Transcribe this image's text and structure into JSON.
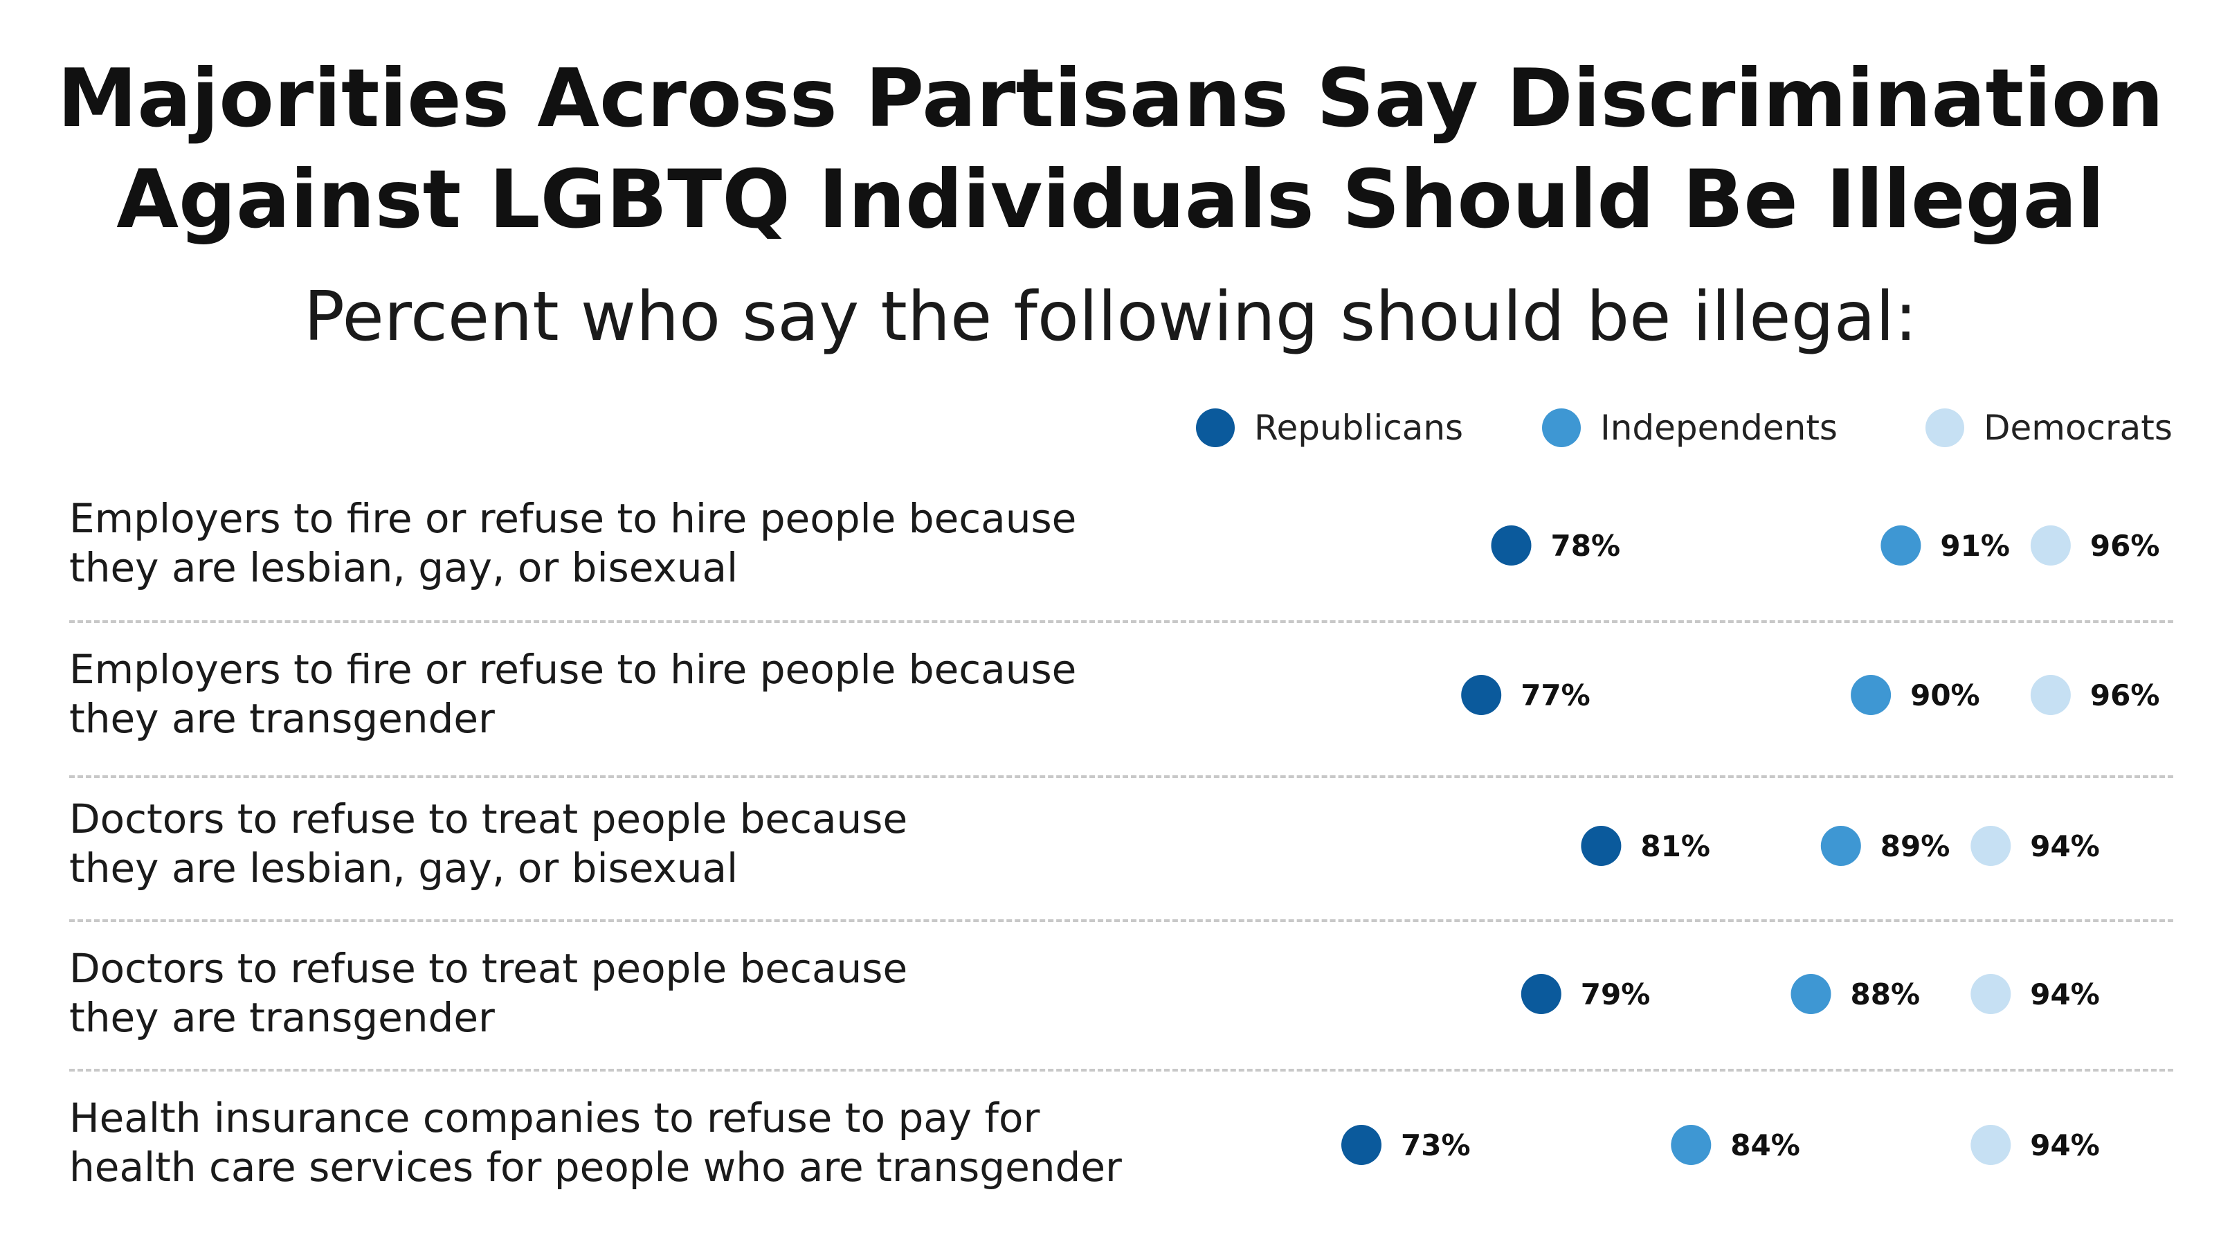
{
  "chart_data": {
    "type": "scatter",
    "title_line1": "Majorities Across Partisans Say Discrimination",
    "title_line2": "Against LGBTQ Individuals Should Be Illegal",
    "subtitle": "Percent who say the following should be illegal:",
    "legend_position": "top-right",
    "unit": "%",
    "xlim": [
      70,
      100
    ],
    "series": [
      {
        "name": "Republicans",
        "color": "#0b5a9c",
        "values": [
          78,
          77,
          81,
          79,
          73
        ]
      },
      {
        "name": "Independents",
        "color": "#3e97d3",
        "values": [
          91,
          90,
          89,
          88,
          84
        ]
      },
      {
        "name": "Democrats",
        "color": "#c6e0f3",
        "values": [
          96,
          96,
          94,
          94,
          94
        ]
      }
    ],
    "categories": [
      "Employers to fire or refuse to hire people because\nthey are lesbian, gay, or bisexual",
      "Employers to fire or refuse to hire people because\nthey are transgender",
      "Doctors to refuse to treat people because\nthey are lesbian, gay, or bisexual",
      "Doctors to refuse to treat people because\nthey are transgender",
      "Health insurance companies to refuse to pay for\nhealth care services for people who are transgender"
    ]
  }
}
